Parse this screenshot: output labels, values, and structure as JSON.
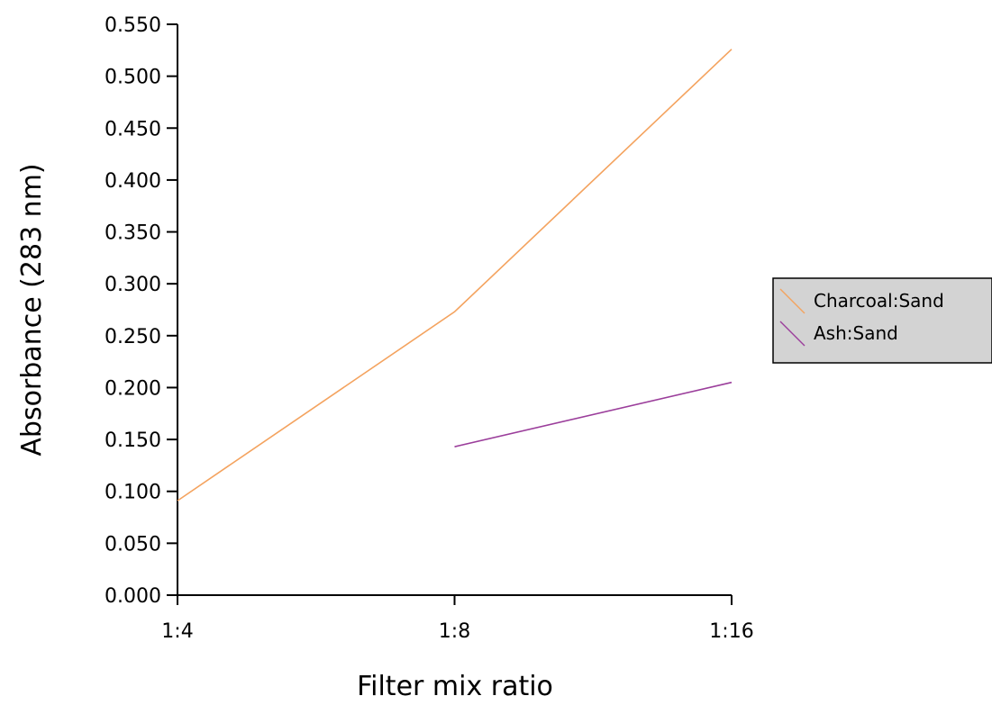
{
  "chart_data": {
    "type": "line",
    "title": "",
    "xlabel": "Filter mix ratio",
    "ylabel": "Absorbance (283 nm)",
    "categories": [
      "1:4",
      "1:8",
      "1:16"
    ],
    "ylim": [
      0,
      0.55
    ],
    "yticks": [
      "0.000",
      "0.050",
      "0.100",
      "0.150",
      "0.200",
      "0.250",
      "0.300",
      "0.350",
      "0.400",
      "0.450",
      "0.500",
      "0.550"
    ],
    "grid": false,
    "legend_position": "right",
    "series": [
      {
        "name": "Charcoal:Sand",
        "color": "#f4a35f",
        "values": [
          0.091,
          0.273,
          0.526
        ]
      },
      {
        "name": "Ash:Sand",
        "color": "#9b3e9b",
        "values": [
          null,
          0.143,
          0.205
        ]
      }
    ]
  }
}
